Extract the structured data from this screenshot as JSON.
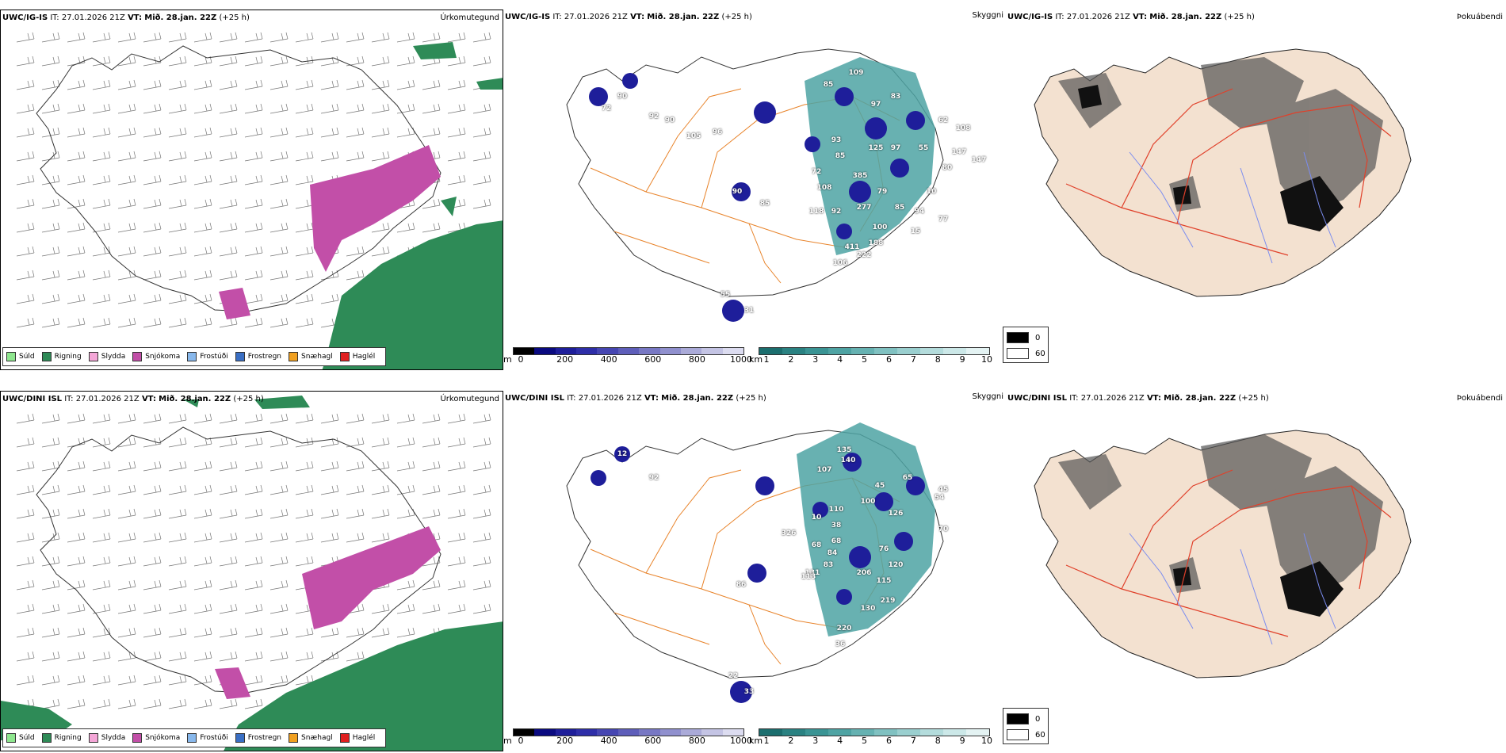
{
  "rows": [
    {
      "precip": {
        "header_model": "UWC/IG-IS",
        "header_it": "IT: 27.01.2026 21Z",
        "header_vt_label": "VT:",
        "header_vt": "Mið. 28.jan. 22Z",
        "header_lead": "(+25 h)",
        "title": "Úrkomutegund"
      },
      "vis": {
        "header_model": "UWC/IG-IS",
        "header_it": "IT: 27.01.2026 21Z",
        "header_vt_label": "VT:",
        "header_vt": "Mið. 28.jan. 22Z",
        "header_lead": "(+25 h)",
        "title": "Skyggni",
        "labels": [
          "90",
          "72",
          "92",
          "109",
          "85",
          "97",
          "83",
          "96",
          "90",
          "105",
          "93",
          "85",
          "125",
          "97",
          "55",
          "62",
          "108",
          "80",
          "147",
          "147",
          "72",
          "108",
          "385",
          "79",
          "85",
          "94",
          "90",
          "118",
          "92",
          "277",
          "100",
          "77",
          "15",
          "85",
          "411",
          "188",
          "222",
          "106",
          "55",
          "31",
          "10"
        ]
      },
      "fog": {
        "header_model": "UWC/IG-IS",
        "header_it": "IT: 27.01.2026 21Z",
        "header_vt_label": "VT:",
        "header_vt": "Mið. 28.jan. 22Z",
        "header_lead": "(+25 h)",
        "title": "Þokuábendi"
      }
    },
    {
      "precip": {
        "header_model": "UWC/DINI ISL",
        "header_it": "IT: 27.01.2026 21Z",
        "header_vt_label": "VT:",
        "header_vt": "Mið. 28.jan. 22Z",
        "header_lead": "(+25 h)",
        "title": "Úrkomutegund"
      },
      "vis": {
        "header_model": "UWC/DINI ISL",
        "header_it": "IT: 27.01.2026 21Z",
        "header_vt_label": "VT:",
        "header_vt": "Mið. 28.jan. 22Z",
        "header_lead": "(+25 h)",
        "title": "Skyggni",
        "labels": [
          "12",
          "92",
          "107",
          "135",
          "140",
          "65",
          "45",
          "100",
          "45",
          "110",
          "126",
          "68",
          "10",
          "38",
          "68",
          "84",
          "76",
          "326",
          "131",
          "113",
          "83",
          "120",
          "206",
          "115",
          "86",
          "219",
          "130",
          "220",
          "36",
          "33",
          "22",
          "54",
          "70"
        ]
      },
      "fog": {
        "header_model": "UWC/DINI ISL",
        "header_it": "IT: 27.01.2026 21Z",
        "header_vt_label": "VT:",
        "header_vt": "Mið. 28.jan. 22Z",
        "header_lead": "(+25 h)",
        "title": "Þokuábendi"
      }
    }
  ],
  "precip_legend": [
    {
      "label": "Súld",
      "color": "#8ee68e"
    },
    {
      "label": "Rigning",
      "color": "#2e8b57"
    },
    {
      "label": "Slydda",
      "color": "#f4a6d7"
    },
    {
      "label": "Snjókoma",
      "color": "#c24fa8"
    },
    {
      "label": "Frostúði",
      "color": "#88b8ec"
    },
    {
      "label": "Frostregn",
      "color": "#3a6fc4"
    },
    {
      "label": "Snæhagl",
      "color": "#f0a020"
    },
    {
      "label": "Haglél",
      "color": "#e02020"
    }
  ],
  "ceiling_bar": {
    "unit": "m",
    "ticks": [
      "0",
      "200",
      "400",
      "600",
      "800",
      "1000"
    ],
    "colors": [
      "#000000",
      "#0a0a80",
      "#1e1e9a",
      "#2e2ea8",
      "#4646b2",
      "#5e5eba",
      "#7878c4",
      "#9090ce",
      "#aaaad8",
      "#c4c4e4",
      "#dcdcf0"
    ]
  },
  "vis_bar": {
    "unit": "km",
    "ticks": [
      "1",
      "2",
      "3",
      "4",
      "5",
      "6",
      "7",
      "8",
      "9",
      "10"
    ],
    "colors": [
      "#1b6e6e",
      "#2a8282",
      "#3a9494",
      "#4ea3a3",
      "#66b2b2",
      "#80c1c1",
      "#9acfcf",
      "#b4dcdc",
      "#cce8e8",
      "#e4f3f3"
    ]
  },
  "fog_legend": [
    {
      "label": "0",
      "color": "#000000"
    },
    {
      "label": "60",
      "color": "#ffffff"
    }
  ]
}
